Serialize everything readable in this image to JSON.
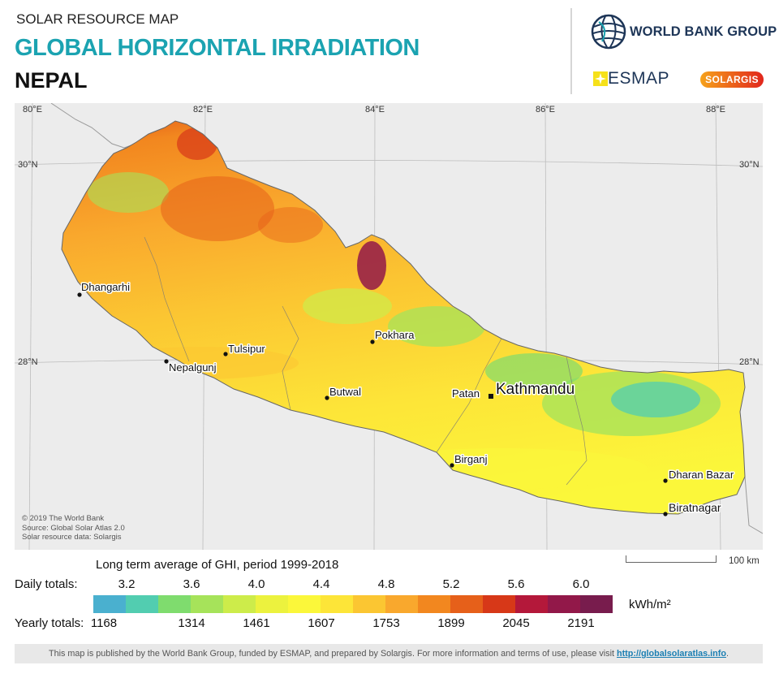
{
  "header": {
    "kicker": "SOLAR RESOURCE MAP",
    "title": "GLOBAL HORIZONTAL IRRADIATION",
    "country": "NEPAL"
  },
  "logos": {
    "world_bank": "WORLD BANK GROUP",
    "esmap": "ESMAP",
    "solargis": "SOLARGIS",
    "world_bank_icon": "globe-icon",
    "esmap_icon": "sun-star-icon"
  },
  "map": {
    "longitude_labels": [
      "80°E",
      "82°E",
      "84°E",
      "86°E",
      "88°E"
    ],
    "latitude_labels": {
      "north": "30°N",
      "south": "28°N"
    },
    "capital": "Kathmandu",
    "cities": [
      {
        "name": "Dhangarhi"
      },
      {
        "name": "Tulsipur"
      },
      {
        "name": "Nepalgunj"
      },
      {
        "name": "Pokhara"
      },
      {
        "name": "Butwal"
      },
      {
        "name": "Patan"
      },
      {
        "name": "Birganj"
      },
      {
        "name": "Dharan Bazar"
      },
      {
        "name": "Biratnagar"
      }
    ],
    "credits": [
      "© 2019 The World Bank",
      "Source: Global Solar Atlas 2.0",
      "Solar resource data: Solargis"
    ],
    "scale_label": "100 km"
  },
  "legend": {
    "caption": "Long term average of GHI, period 1999-2018",
    "daily_label": "Daily totals:",
    "yearly_label": "Yearly totals:",
    "unit": "kWh/m²",
    "daily_values": [
      "3.2",
      "3.6",
      "4.0",
      "4.4",
      "4.8",
      "5.2",
      "5.6",
      "6.0"
    ],
    "yearly_values": [
      "1168",
      "1314",
      "1461",
      "1607",
      "1753",
      "1899",
      "2045",
      "2191"
    ],
    "colors": [
      "#4ab0cf",
      "#52cdb0",
      "#7fdc6e",
      "#a6e35a",
      "#cdec4a",
      "#ecf23e",
      "#fbf73a",
      "#fde538",
      "#fbc632",
      "#f9a82d",
      "#f2871f",
      "#e6601a",
      "#d73818",
      "#b4183a",
      "#921849",
      "#781c4d"
    ]
  },
  "footer": {
    "text": "This map is published by the World Bank Group, funded by ESMAP, and prepared by Solargis. For more information and terms of use, please visit",
    "link": "http://globalsolaratlas.info",
    "end": "."
  }
}
